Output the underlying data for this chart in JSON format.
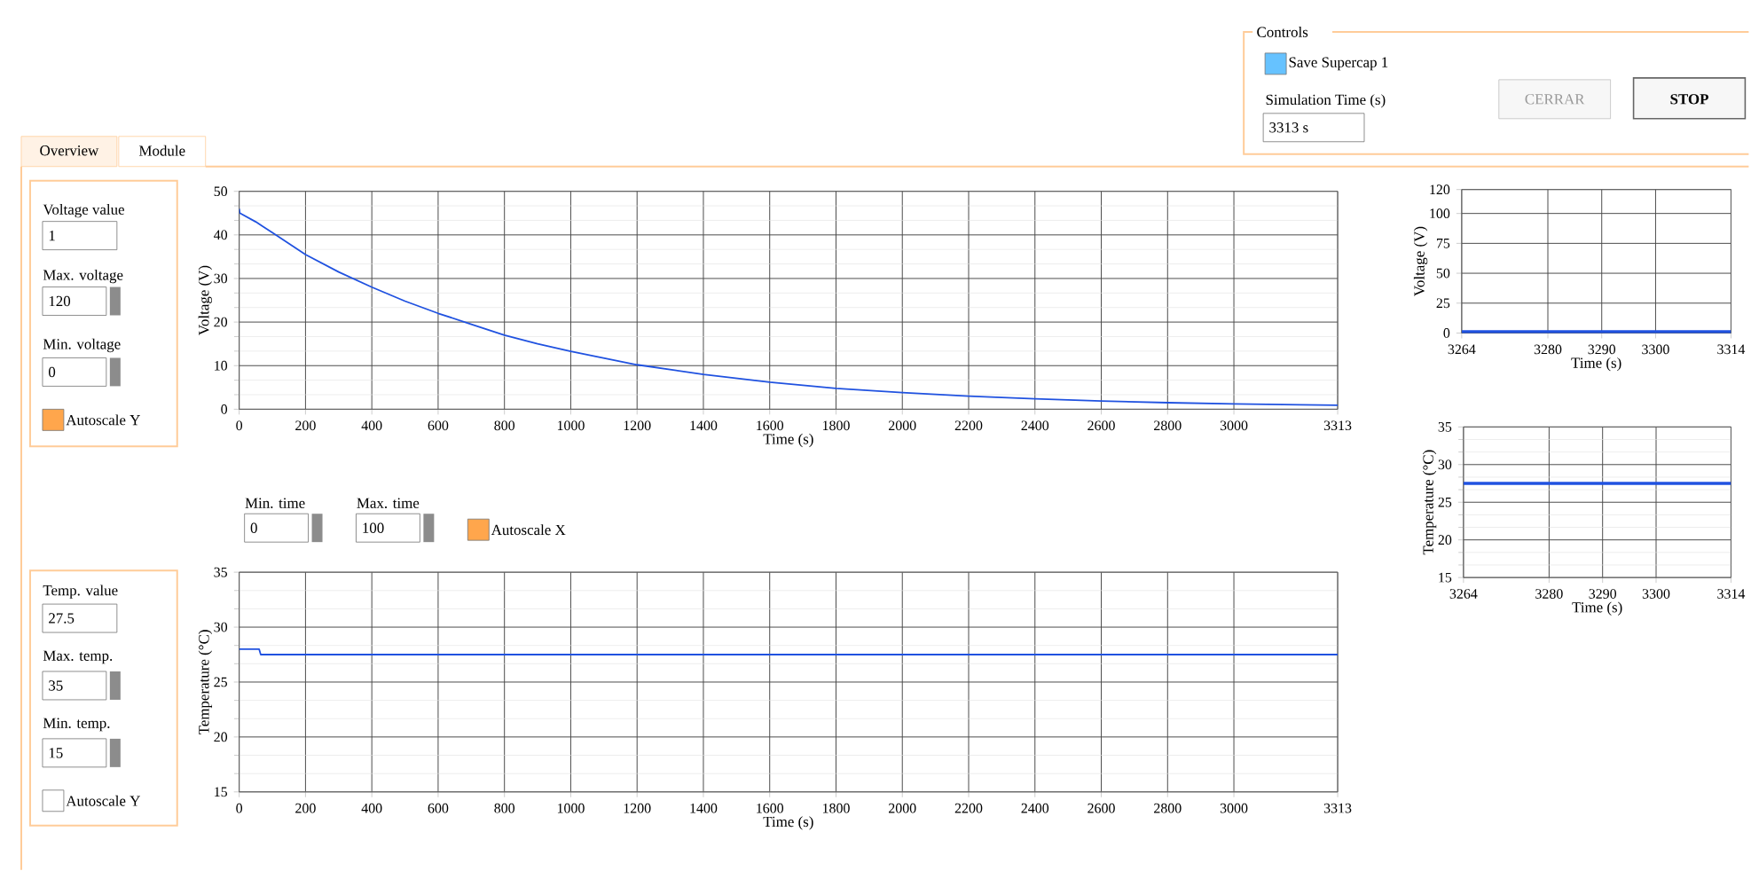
{
  "chart_data": [
    {
      "type": "line",
      "xlabel": "Time (s)",
      "ylabel": "Voltage (V)",
      "x": [
        0,
        2,
        50,
        100,
        200,
        300,
        400,
        500,
        600,
        700,
        800,
        900,
        1000,
        1200,
        1400,
        1600,
        1800,
        2000,
        2200,
        2400,
        2600,
        2800,
        3000,
        3200,
        3313
      ],
      "values": [
        46,
        45,
        43,
        40.5,
        35.5,
        31.5,
        28,
        24.8,
        22,
        19.5,
        17,
        15,
        13.3,
        10.2,
        8,
        6.2,
        4.8,
        3.8,
        3,
        2.4,
        1.9,
        1.5,
        1.2,
        1,
        0.9
      ],
      "color": "#2052e0",
      "xlim": [
        0,
        3313
      ],
      "ylim": [
        0,
        50
      ],
      "xticks": [
        0,
        200,
        400,
        600,
        800,
        1000,
        1200,
        1400,
        1600,
        1800,
        2000,
        2200,
        2400,
        2600,
        2800,
        3000,
        3313
      ],
      "yticks": [
        0,
        10,
        20,
        30,
        40,
        50
      ],
      "grid": true,
      "annotations": [
        "Voltage value",
        "1",
        "Max. voltage",
        "120",
        "Min. voltage",
        "0",
        "Autoscale Y"
      ]
    },
    {
      "type": "line",
      "xlabel": "Time (s)",
      "ylabel": "Temperature (°C)",
      "x": [
        0,
        60,
        65,
        3313
      ],
      "values": [
        28,
        28,
        27.5,
        27.5
      ],
      "color": "#2052e0",
      "xlim": [
        0,
        3313
      ],
      "ylim": [
        15,
        35
      ],
      "xticks": [
        0,
        200,
        400,
        600,
        800,
        1000,
        1200,
        1400,
        1600,
        1800,
        2000,
        2200,
        2400,
        2600,
        2800,
        3000,
        3313
      ],
      "yticks": [
        15,
        20,
        25,
        30,
        35
      ],
      "grid": true,
      "annotations": [
        "Min. time",
        "0",
        "Max. time",
        "100",
        "Autoscale X",
        "Temp. value",
        "27.5",
        "Max. temp.",
        "35",
        "Min. temp.",
        "15",
        "Autoscale Y"
      ]
    },
    {
      "type": "line",
      "xlabel": "Time (s)",
      "ylabel": "Voltage (V)",
      "x": [
        3264,
        3314
      ],
      "values": [
        1,
        1
      ],
      "color": "#2052e0",
      "xlim": [
        3264,
        3314
      ],
      "ylim": [
        0,
        120
      ],
      "xticks": [
        3264,
        3280,
        3290,
        3300,
        3314
      ],
      "yticks": [
        0,
        25,
        50,
        75,
        100,
        120
      ],
      "grid": true
    },
    {
      "type": "line",
      "xlabel": "Time (s)",
      "ylabel": "Temperature (°C)",
      "x": [
        3264,
        3314
      ],
      "values": [
        27.5,
        27.5
      ],
      "color": "#2052e0",
      "xlim": [
        3264,
        3314
      ],
      "ylim": [
        15,
        35
      ],
      "xticks": [
        3264,
        3280,
        3290,
        3300,
        3314
      ],
      "yticks": [
        15,
        20,
        25,
        30,
        35
      ],
      "grid": true
    },
    {
      "type": "other",
      "title": "Controls",
      "annotations": [
        "Save Supercap 1",
        "Simulation Time (s)",
        "3313 s",
        "CERRAR",
        "STOP",
        "Overview",
        "Module"
      ]
    }
  ]
}
